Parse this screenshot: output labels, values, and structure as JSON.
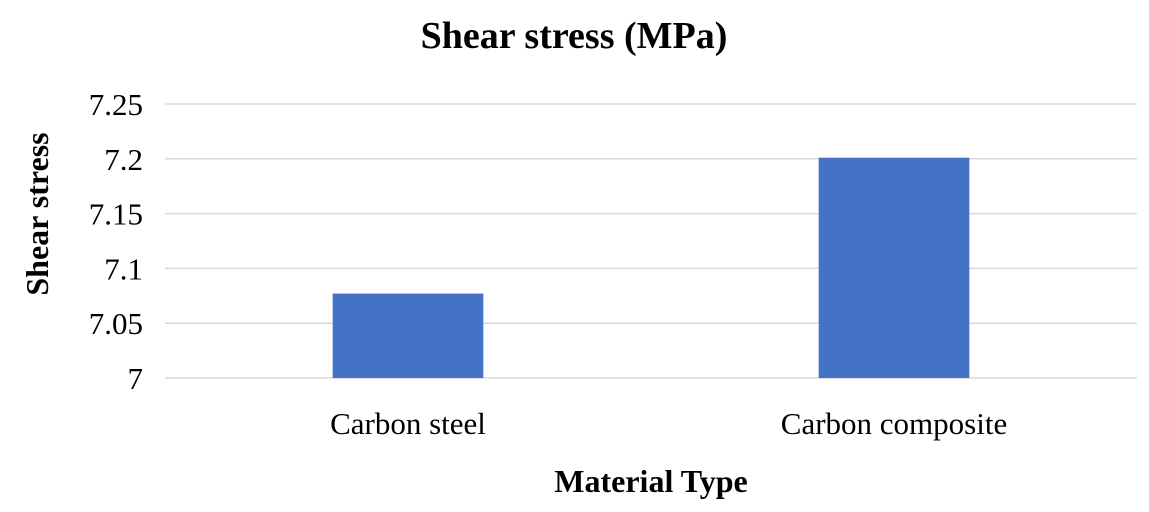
{
  "chart_data": {
    "type": "bar",
    "title": "Shear stress (MPa)",
    "xlabel": "Material Type",
    "ylabel": "Shear stress",
    "categories": [
      "Carbon steel",
      "Carbon composite"
    ],
    "values": [
      7.077,
      7.201
    ],
    "ylim": [
      7,
      7.25
    ],
    "yticks": [
      "7",
      "7.05",
      "7.1",
      "7.15",
      "7.2",
      "7.25"
    ],
    "ytick_values": [
      7,
      7.05,
      7.1,
      7.15,
      7.2,
      7.25
    ],
    "grid": true,
    "legend": "none",
    "bar_color": "#4472c4"
  }
}
